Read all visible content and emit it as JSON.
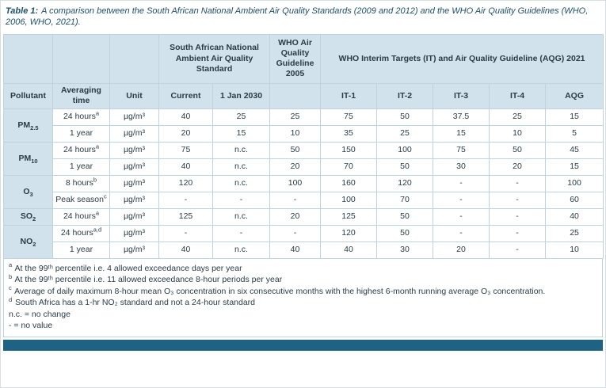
{
  "caption": {
    "label": "Table 1:",
    "text": "A comparison between the South African National Ambient Air Quality Standards (2009 and 2012) and the WHO Air Quality Guidelines (WHO, 2006, WHO, 2021)."
  },
  "table": {
    "group_headers": {
      "sa": "South African National Ambient Air Quality Standard",
      "who2005": "WHO Air Quality Guideline 2005",
      "who2021": "WHO Interim Targets (IT) and Air Quality Guideline (AQG) 2021"
    },
    "col_headers": [
      "Pollutant",
      "Averaging time",
      "Unit",
      "Current",
      "1 Jan 2030",
      "IT-1",
      "IT-2",
      "IT-3",
      "IT-4",
      "AQG"
    ],
    "groups": [
      {
        "pollutant": {
          "base": "PM",
          "sub": "2.5"
        },
        "rows": [
          {
            "avg": "24 hours",
            "avg_sup": "a",
            "unit": "µg/m³",
            "values": [
              "40",
              "25",
              "25",
              "75",
              "50",
              "37.5",
              "25",
              "15"
            ]
          },
          {
            "avg": "1 year",
            "avg_sup": "",
            "unit": "µg/m³",
            "values": [
              "20",
              "15",
              "10",
              "35",
              "25",
              "15",
              "10",
              "5"
            ]
          }
        ]
      },
      {
        "pollutant": {
          "base": "PM",
          "sub": "10"
        },
        "rows": [
          {
            "avg": "24 hours",
            "avg_sup": "a",
            "unit": "µg/m³",
            "values": [
              "75",
              "n.c.",
              "50",
              "150",
              "100",
              "75",
              "50",
              "45"
            ]
          },
          {
            "avg": "1 year",
            "avg_sup": "",
            "unit": "µg/m³",
            "values": [
              "40",
              "n.c.",
              "20",
              "70",
              "50",
              "30",
              "20",
              "15"
            ]
          }
        ]
      },
      {
        "pollutant": {
          "base": "O",
          "sub": "3"
        },
        "rows": [
          {
            "avg": "8 hours",
            "avg_sup": "b",
            "unit": "µg/m³",
            "values": [
              "120",
              "n.c.",
              "100",
              "160",
              "120",
              "-",
              "-",
              "100"
            ]
          },
          {
            "avg": "Peak season",
            "avg_sup": "c",
            "unit": "µg/m³",
            "values": [
              "-",
              "-",
              "-",
              "100",
              "70",
              "-",
              "-",
              "60"
            ]
          }
        ]
      },
      {
        "pollutant": {
          "base": "SO",
          "sub": "2"
        },
        "rows": [
          {
            "avg": "24 hours",
            "avg_sup": "a",
            "unit": "µg/m³",
            "values": [
              "125",
              "n.c.",
              "20",
              "125",
              "50",
              "-",
              "-",
              "40"
            ]
          }
        ]
      },
      {
        "pollutant": {
          "base": "NO",
          "sub": "2"
        },
        "rows": [
          {
            "avg": "24 hours",
            "avg_sup": "a,d",
            "unit": "µg/m³",
            "values": [
              "-",
              "-",
              "-",
              "120",
              "50",
              "-",
              "-",
              "25"
            ]
          },
          {
            "avg": "1 year",
            "avg_sup": "",
            "unit": "µg/m³",
            "values": [
              "40",
              "n.c.",
              "40",
              "40",
              "30",
              "20",
              "-",
              "10"
            ]
          }
        ]
      }
    ]
  },
  "footnotes": [
    {
      "marker": "a",
      "text": "At the 99ᵗʰ percentile i.e. 4 allowed exceedance days per year"
    },
    {
      "marker": "b",
      "text": "At the 99ᵗʰ percentile i.e. 11 allowed exceedance 8-hour periods per year"
    },
    {
      "marker": "c",
      "text": "Average of daily maximum 8-hour mean O₃ concentration in six consecutive months with the highest 6-month running average O₃ concentration."
    },
    {
      "marker": "d",
      "text": "South Africa has a 1-hr NO₂ standard and not a 24-hour standard"
    },
    {
      "marker": "",
      "text": "n.c. = no change"
    },
    {
      "marker": "",
      "text": "- = no value"
    }
  ],
  "colors": {
    "header-bg": "#d2e2ec",
    "border": "#bfd3de",
    "text": "#2a3b45",
    "caption": "#1d5068",
    "bar": "#1f6384"
  }
}
